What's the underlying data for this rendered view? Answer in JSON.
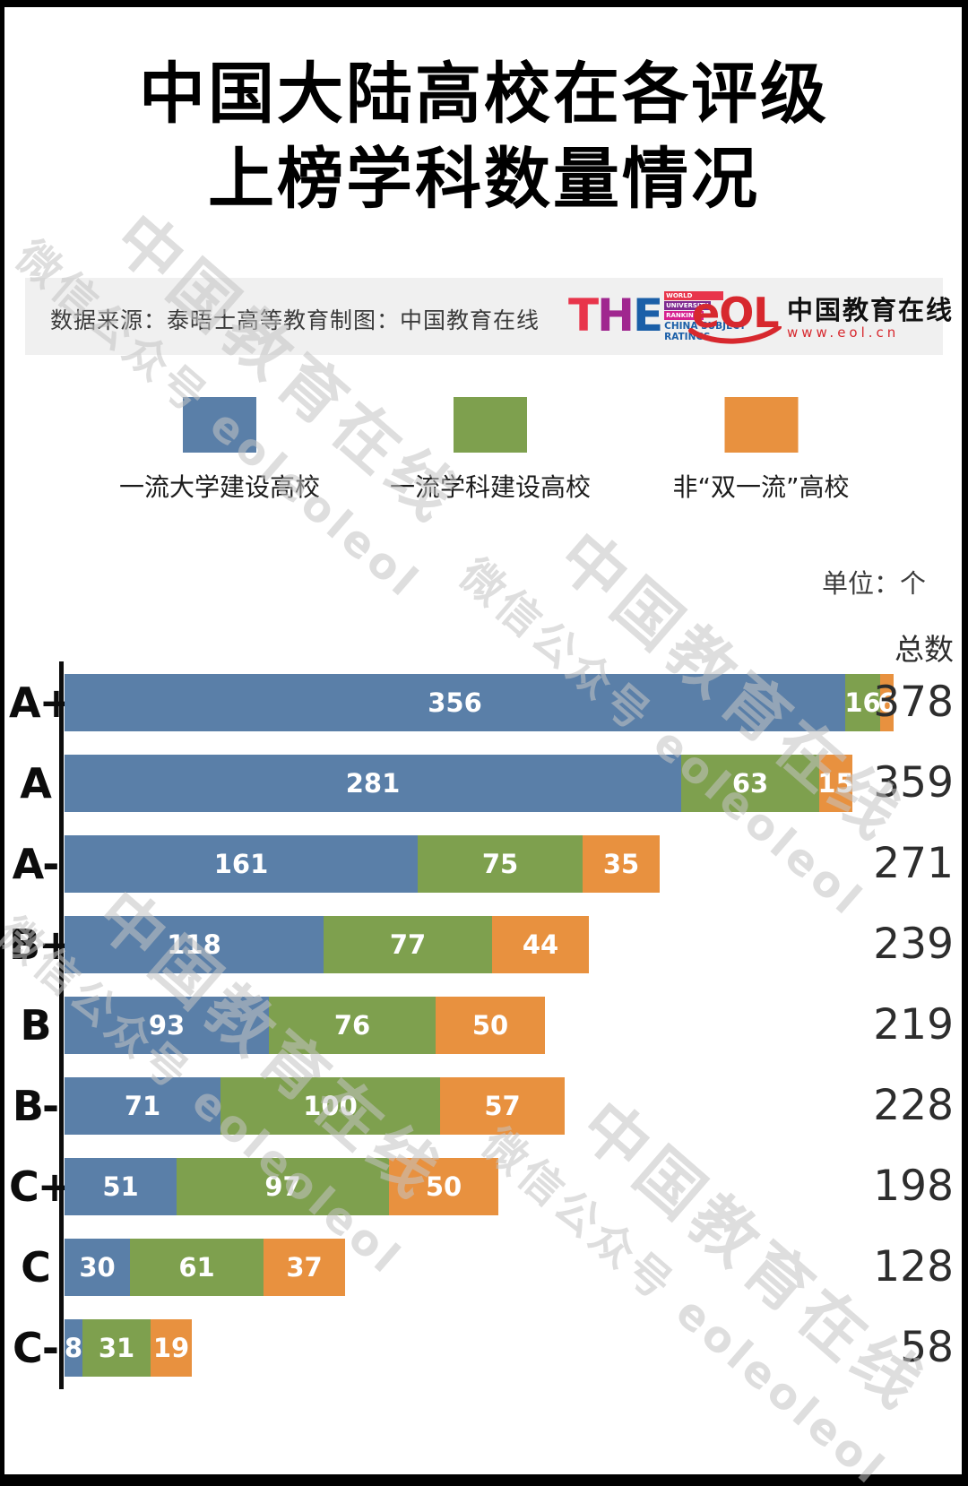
{
  "title": {
    "line1": "中国大陆高校在各评级",
    "line2": "上榜学科数量情况"
  },
  "source_bar": {
    "data_source": "数据来源：泰晤士高等教育",
    "credit": "制图：中国教育在线",
    "the_logo": {
      "t": "T",
      "h": "H",
      "e": "E",
      "bar1": "WORLD",
      "bar2": "UNIVERSITY",
      "bar3": "RANKINGS",
      "sub1": "CHINA SUBJECT",
      "sub2": "RATINGS"
    },
    "eol_logo": {
      "mark": "eOL",
      "name": "中国教育在线",
      "url": "www.eol.cn"
    }
  },
  "legend": [
    {
      "label": "一流大学建设高校",
      "color": "#5a7fa8"
    },
    {
      "label": "一流学科建设高校",
      "color": "#7ea04e"
    },
    {
      "label": "非“双一流”高校",
      "color": "#e8913f"
    }
  ],
  "unit_label": "单位：个",
  "total_header": "总数",
  "watermark": {
    "line1": "中国教育在线",
    "line2": "微信公众号 eoleoleol"
  },
  "chart_data": {
    "type": "bar",
    "orientation": "horizontal",
    "stacked": true,
    "title": "中国大陆高校在各评级上榜学科数量情况",
    "unit": "个",
    "categories": [
      "A+",
      "A",
      "A-",
      "B+",
      "B",
      "B-",
      "C+",
      "C",
      "C-"
    ],
    "series": [
      {
        "name": "一流大学建设高校",
        "color": "#5a7fa8",
        "values": [
          356,
          281,
          161,
          118,
          93,
          71,
          51,
          30,
          8
        ]
      },
      {
        "name": "一流学科建设高校",
        "color": "#7ea04e",
        "values": [
          16,
          63,
          75,
          77,
          76,
          100,
          97,
          61,
          31
        ]
      },
      {
        "name": "非“双一流”高校",
        "color": "#e8913f",
        "values": [
          6,
          15,
          35,
          44,
          50,
          57,
          50,
          37,
          19
        ]
      }
    ],
    "totals": [
      378,
      359,
      271,
      239,
      219,
      228,
      198,
      128,
      58
    ],
    "xlim": [
      0,
      378
    ],
    "legend_position": "top",
    "grid": false
  }
}
